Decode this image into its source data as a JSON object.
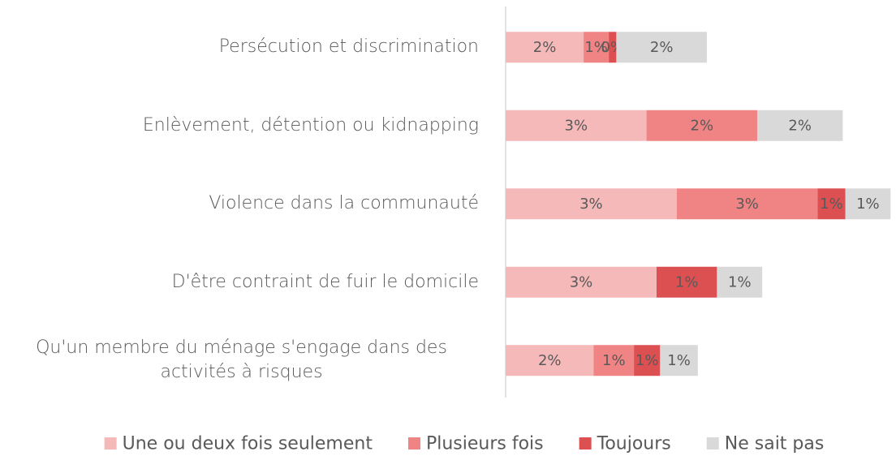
{
  "chart_data": {
    "type": "stacked-bar-horizontal",
    "categories": [
      "Persécution et discrimination",
      "Enlèvement, détention ou kidnapping",
      "Violence dans la communauté",
      "D'être contraint de fuir le domicile",
      "Qu'un membre du ménage s'engage dans des activités à risques"
    ],
    "series": [
      {
        "name": "Une ou deux fois seulement",
        "color": "#f4b9b8",
        "values": [
          1.55,
          2.8,
          3.4,
          3.0,
          1.75
        ],
        "value_labels": [
          "2%",
          "3%",
          "3%",
          "3%",
          "2%"
        ]
      },
      {
        "name": "Plusieurs fois",
        "color": "#f08383",
        "values": [
          0.5,
          2.2,
          2.8,
          null,
          0.8
        ],
        "value_labels": [
          "1%",
          "2%",
          "3%",
          null,
          "1%"
        ]
      },
      {
        "name": "Toujours",
        "color": "#dc5052",
        "values": [
          0.15,
          null,
          0.55,
          1.2,
          0.52
        ],
        "value_labels": [
          "0%",
          null,
          "1%",
          "1%",
          "1%"
        ]
      },
      {
        "name": "Ne sait pas",
        "color": "#d9d9d9",
        "values": [
          1.8,
          1.7,
          0.9,
          0.9,
          0.75
        ],
        "value_labels": [
          "2%",
          "2%",
          "1%",
          "1%",
          "1%"
        ]
      }
    ]
  }
}
